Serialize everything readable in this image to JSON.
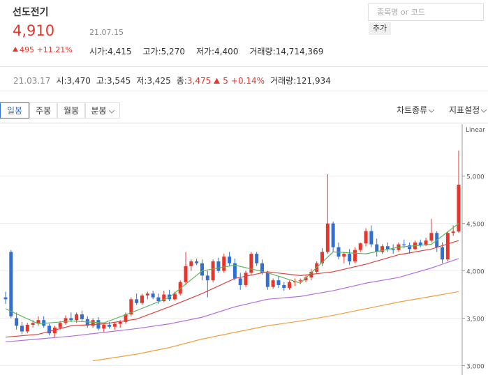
{
  "header": {
    "name": "선도전기",
    "price": "4,910",
    "date": "21.07.15",
    "change": "495",
    "change_pct": "+11.21%",
    "stats": [
      {
        "label": "시가:",
        "value": "4,415"
      },
      {
        "label": "고가:",
        "value": "5,270"
      },
      {
        "label": "저가:",
        "value": "4,400"
      },
      {
        "label": "거래량:",
        "value": "14,714,369"
      }
    ]
  },
  "hover": {
    "date": "21.03.17",
    "items": [
      {
        "label": "시:",
        "value": "3,470"
      },
      {
        "label": "고:",
        "value": "3,545"
      },
      {
        "label": "저:",
        "value": "3,425"
      }
    ],
    "close_label": "종:",
    "close_value": "3,475",
    "close_change": "5",
    "close_pct": "+0.14%",
    "volume_label": "거래량:",
    "volume_value": "121,934"
  },
  "search": {
    "placeholder": "종목명 or 코드",
    "button": "추가"
  },
  "tabs": {
    "left": [
      "일봉",
      "주봉",
      "월봉",
      "분봉"
    ],
    "right": [
      "차트종류",
      "지표설정"
    ]
  },
  "chart_data": {
    "type": "candlestick",
    "scale_label": "Linear",
    "up_color": "#e8352b",
    "down_color": "#2f6fd6",
    "ylim": [
      2900,
      5550
    ],
    "yticks": [
      {
        "value": 3000,
        "label": "3,000"
      },
      {
        "value": 3500,
        "label": "3,500"
      },
      {
        "value": 4000,
        "label": "4,000"
      },
      {
        "value": 4500,
        "label": "4,500"
      },
      {
        "value": 5000,
        "label": "5,000"
      }
    ],
    "grid": true,
    "candles": [
      [
        3720,
        3780,
        3650,
        3700
      ],
      [
        4200,
        4220,
        3500,
        3520
      ],
      [
        3500,
        3560,
        3380,
        3420
      ],
      [
        3420,
        3460,
        3330,
        3360
      ],
      [
        3360,
        3450,
        3340,
        3430
      ],
      [
        3430,
        3480,
        3400,
        3450
      ],
      [
        3450,
        3520,
        3420,
        3480
      ],
      [
        3480,
        3520,
        3400,
        3420
      ],
      [
        3420,
        3440,
        3320,
        3340
      ],
      [
        3340,
        3420,
        3300,
        3400
      ],
      [
        3400,
        3470,
        3380,
        3450
      ],
      [
        3450,
        3530,
        3430,
        3500
      ],
      [
        3500,
        3560,
        3460,
        3480
      ],
      [
        3480,
        3560,
        3450,
        3540
      ],
      [
        3540,
        3580,
        3470,
        3490
      ],
      [
        3490,
        3520,
        3400,
        3420
      ],
      [
        3420,
        3500,
        3400,
        3480
      ],
      [
        3480,
        3510,
        3370,
        3390
      ],
      [
        3390,
        3440,
        3350,
        3430
      ],
      [
        3430,
        3460,
        3390,
        3410
      ],
      [
        3410,
        3460,
        3380,
        3440
      ],
      [
        3440,
        3480,
        3400,
        3460
      ],
      [
        3460,
        3560,
        3440,
        3540
      ],
      [
        3540,
        3720,
        3520,
        3700
      ],
      [
        3700,
        3760,
        3640,
        3660
      ],
      [
        3660,
        3760,
        3640,
        3740
      ],
      [
        3740,
        3780,
        3700,
        3760
      ],
      [
        3760,
        3790,
        3700,
        3720
      ],
      [
        3720,
        3760,
        3650,
        3680
      ],
      [
        3680,
        3790,
        3670,
        3750
      ],
      [
        3750,
        3800,
        3680,
        3700
      ],
      [
        3700,
        3780,
        3690,
        3760
      ],
      [
        3760,
        3900,
        3740,
        3880
      ],
      [
        3880,
        4200,
        3850,
        4050
      ],
      [
        4050,
        4120,
        4000,
        4100
      ],
      [
        4100,
        4130,
        4060,
        4080
      ],
      [
        4080,
        4120,
        3900,
        3950
      ],
      [
        3950,
        4000,
        3720,
        3900
      ],
      [
        3900,
        4120,
        3880,
        4100
      ],
      [
        4100,
        4140,
        3980,
        4000
      ],
      [
        4000,
        4180,
        3980,
        4150
      ],
      [
        4150,
        4200,
        4050,
        4080
      ],
      [
        4080,
        4130,
        3900,
        3920
      ],
      [
        3920,
        3980,
        3800,
        3850
      ],
      [
        3850,
        4000,
        3830,
        3980
      ],
      [
        3980,
        4200,
        3960,
        4180
      ],
      [
        4180,
        4200,
        4050,
        4080
      ],
      [
        4080,
        4120,
        3960,
        3980
      ],
      [
        3980,
        4000,
        3800,
        3830
      ],
      [
        3830,
        3920,
        3810,
        3900
      ],
      [
        3900,
        3940,
        3820,
        3850
      ],
      [
        3850,
        3880,
        3790,
        3820
      ],
      [
        3820,
        3900,
        3800,
        3880
      ],
      [
        3880,
        3920,
        3840,
        3890
      ],
      [
        3890,
        3920,
        3860,
        3900
      ],
      [
        3900,
        3950,
        3880,
        3930
      ],
      [
        3930,
        4020,
        3900,
        3990
      ],
      [
        3990,
        4100,
        3970,
        4080
      ],
      [
        4080,
        4240,
        4050,
        4200
      ],
      [
        4200,
        5020,
        4180,
        4500
      ],
      [
        4500,
        4520,
        4200,
        4250
      ],
      [
        4250,
        4300,
        4120,
        4150
      ],
      [
        4150,
        4200,
        4080,
        4180
      ],
      [
        4180,
        4230,
        4060,
        4100
      ],
      [
        4100,
        4250,
        4080,
        4220
      ],
      [
        4220,
        4300,
        4200,
        4290
      ],
      [
        4290,
        4450,
        4260,
        4420
      ],
      [
        4420,
        4480,
        4250,
        4280
      ],
      [
        4280,
        4340,
        4150,
        4200
      ],
      [
        4200,
        4280,
        4180,
        4260
      ],
      [
        4260,
        4300,
        4200,
        4230
      ],
      [
        4230,
        4280,
        4180,
        4220
      ],
      [
        4220,
        4300,
        4200,
        4280
      ],
      [
        4280,
        4330,
        4240,
        4270
      ],
      [
        4270,
        4300,
        4180,
        4230
      ],
      [
        4230,
        4320,
        4220,
        4300
      ],
      [
        4300,
        4330,
        4250,
        4270
      ],
      [
        4270,
        4350,
        4260,
        4320
      ],
      [
        4320,
        4550,
        4300,
        4400
      ],
      [
        4400,
        4420,
        4200,
        4250
      ],
      [
        4250,
        4300,
        4080,
        4120
      ],
      [
        4120,
        4420,
        4100,
        4400
      ],
      [
        4400,
        4480,
        4370,
        4415
      ],
      [
        4415,
        5270,
        4400,
        4910
      ]
    ],
    "ma": [
      {
        "color": "#5cb85c",
        "x": [
          0,
          6,
          12,
          18,
          24,
          30,
          36,
          42,
          48,
          54,
          60,
          66,
          72,
          78,
          83
        ],
        "values": [
          3600,
          3440,
          3470,
          3450,
          3580,
          3720,
          4000,
          4060,
          3980,
          3870,
          4200,
          4180,
          4250,
          4280,
          4500
        ]
      },
      {
        "color": "#d9453e",
        "x": [
          0,
          6,
          12,
          18,
          24,
          30,
          36,
          42,
          48,
          54,
          60,
          66,
          72,
          78,
          83
        ],
        "values": [
          3300,
          3330,
          3420,
          3440,
          3490,
          3620,
          3760,
          3920,
          3990,
          3950,
          3990,
          4070,
          4170,
          4230,
          4320
        ]
      },
      {
        "color": "#b46ee0",
        "x": [
          0,
          6,
          12,
          18,
          24,
          30,
          36,
          42,
          48,
          54,
          60,
          66,
          72,
          78,
          83
        ],
        "values": [
          3250,
          3280,
          3310,
          3350,
          3390,
          3440,
          3510,
          3620,
          3700,
          3730,
          3790,
          3870,
          3930,
          4030,
          4130
        ]
      },
      {
        "color": "#f0a040",
        "x": [
          16,
          24,
          30,
          36,
          42,
          48,
          54,
          60,
          66,
          72,
          78,
          83
        ],
        "values": [
          3050,
          3120,
          3190,
          3280,
          3350,
          3420,
          3470,
          3530,
          3600,
          3670,
          3730,
          3780
        ]
      }
    ]
  }
}
